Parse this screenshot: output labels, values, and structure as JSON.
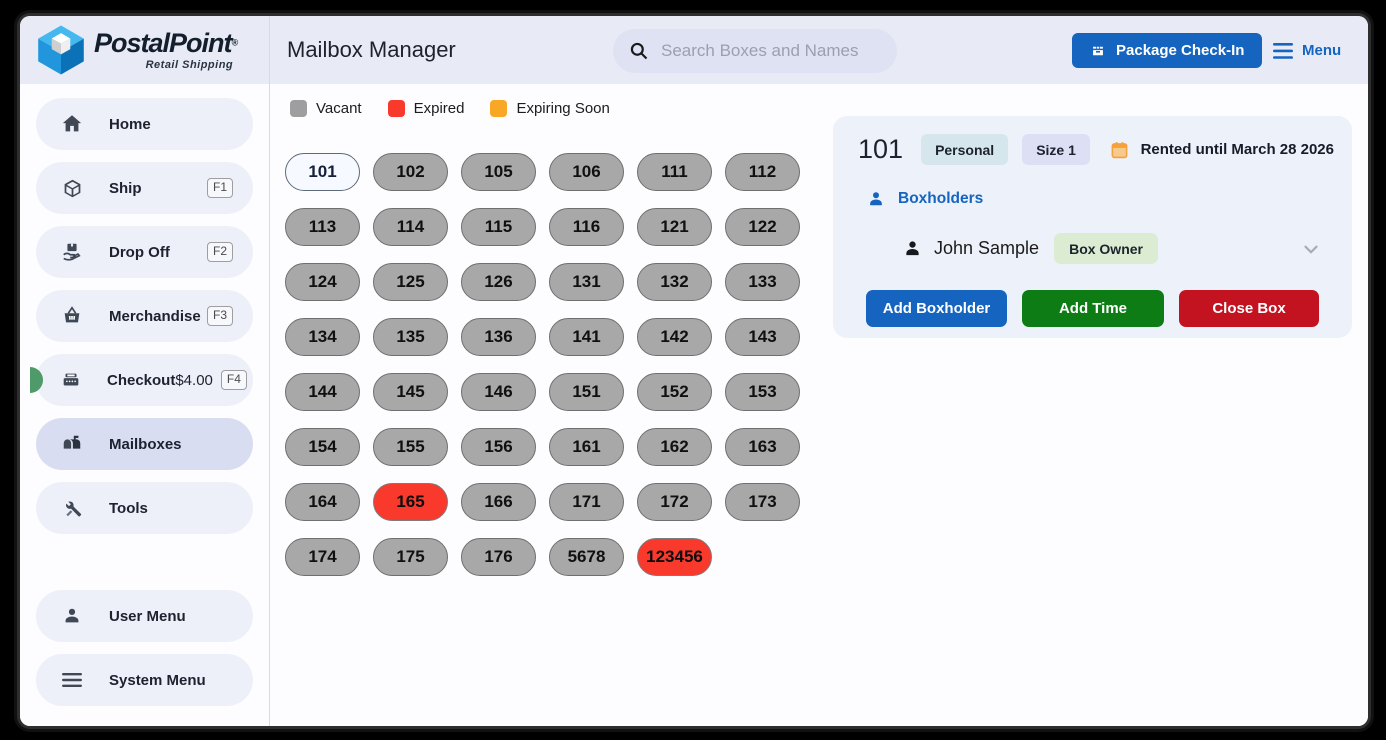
{
  "colors": {
    "accent_blue": "#1565c0",
    "vacant": "#a8a8a8",
    "expired": "#fa392d",
    "expiring_soon": "#f9a825",
    "add_boxholder_btn": "#1565c0",
    "add_time_btn": "#0d7c15",
    "close_box_btn": "#c41320",
    "checkout_badge_green": "#4e9a68"
  },
  "header": {
    "brand": {
      "name": "PostalPoint",
      "registered": "®",
      "tagline": "Retail Shipping"
    },
    "title": "Mailbox Manager",
    "search": {
      "placeholder": "Search Boxes and Names"
    },
    "package_checkin_label": "Package Check-In",
    "menu_label": "Menu"
  },
  "sidebar": {
    "items": [
      {
        "label": "Home",
        "icon": "home-icon"
      },
      {
        "label": "Ship",
        "shortcut": "F1",
        "icon": "package-icon"
      },
      {
        "label": "Drop Off",
        "shortcut": "F2",
        "icon": "dropoff-icon"
      },
      {
        "label": "Merchandise",
        "shortcut": "F3",
        "icon": "basket-icon"
      },
      {
        "label": "Checkout",
        "amount": "$4.00",
        "shortcut": "F4",
        "icon": "register-icon",
        "has_green_badge": true
      },
      {
        "label": "Mailboxes",
        "icon": "mailbox-icon",
        "selected": true
      },
      {
        "label": "Tools",
        "icon": "tools-icon"
      }
    ],
    "footer_items": [
      {
        "label": "User Menu",
        "icon": "user-icon"
      },
      {
        "label": "System Menu",
        "icon": "menu-lines-icon"
      }
    ]
  },
  "legend": [
    {
      "label": "Vacant",
      "color": "#9e9e9e"
    },
    {
      "label": "Expired",
      "color": "#fa392d"
    },
    {
      "label": "Expiring Soon",
      "color": "#f9a825"
    }
  ],
  "mailboxes": {
    "boxes": [
      {
        "number": "101",
        "state": "selected"
      },
      {
        "number": "102",
        "state": "vacant"
      },
      {
        "number": "105",
        "state": "vacant"
      },
      {
        "number": "106",
        "state": "vacant"
      },
      {
        "number": "111",
        "state": "vacant"
      },
      {
        "number": "112",
        "state": "vacant"
      },
      {
        "number": "113",
        "state": "vacant"
      },
      {
        "number": "114",
        "state": "vacant"
      },
      {
        "number": "115",
        "state": "vacant"
      },
      {
        "number": "116",
        "state": "vacant"
      },
      {
        "number": "121",
        "state": "vacant"
      },
      {
        "number": "122",
        "state": "vacant"
      },
      {
        "number": "124",
        "state": "vacant"
      },
      {
        "number": "125",
        "state": "vacant"
      },
      {
        "number": "126",
        "state": "vacant"
      },
      {
        "number": "131",
        "state": "vacant"
      },
      {
        "number": "132",
        "state": "vacant"
      },
      {
        "number": "133",
        "state": "vacant"
      },
      {
        "number": "134",
        "state": "vacant"
      },
      {
        "number": "135",
        "state": "vacant"
      },
      {
        "number": "136",
        "state": "vacant"
      },
      {
        "number": "141",
        "state": "vacant"
      },
      {
        "number": "142",
        "state": "vacant"
      },
      {
        "number": "143",
        "state": "vacant"
      },
      {
        "number": "144",
        "state": "vacant"
      },
      {
        "number": "145",
        "state": "vacant"
      },
      {
        "number": "146",
        "state": "vacant"
      },
      {
        "number": "151",
        "state": "vacant"
      },
      {
        "number": "152",
        "state": "vacant"
      },
      {
        "number": "153",
        "state": "vacant"
      },
      {
        "number": "154",
        "state": "vacant"
      },
      {
        "number": "155",
        "state": "vacant"
      },
      {
        "number": "156",
        "state": "vacant"
      },
      {
        "number": "161",
        "state": "vacant"
      },
      {
        "number": "162",
        "state": "vacant"
      },
      {
        "number": "163",
        "state": "vacant"
      },
      {
        "number": "164",
        "state": "vacant"
      },
      {
        "number": "165",
        "state": "expired"
      },
      {
        "number": "166",
        "state": "vacant"
      },
      {
        "number": "171",
        "state": "vacant"
      },
      {
        "number": "172",
        "state": "vacant"
      },
      {
        "number": "173",
        "state": "vacant"
      },
      {
        "number": "174",
        "state": "vacant"
      },
      {
        "number": "175",
        "state": "vacant"
      },
      {
        "number": "176",
        "state": "vacant"
      },
      {
        "number": "5678",
        "state": "vacant"
      },
      {
        "number": "123456",
        "state": "expired"
      }
    ]
  },
  "detail_panel": {
    "box_number": "101",
    "type_badge": "Personal",
    "size_badge": "Size 1",
    "rented_until": "Rented until March 28 2026",
    "boxholders_label": "Boxholders",
    "boxholder": {
      "name": "John Sample",
      "role": "Box Owner"
    },
    "buttons": {
      "add_boxholder": "Add Boxholder",
      "add_time": "Add Time",
      "close_box": "Close Box"
    }
  }
}
